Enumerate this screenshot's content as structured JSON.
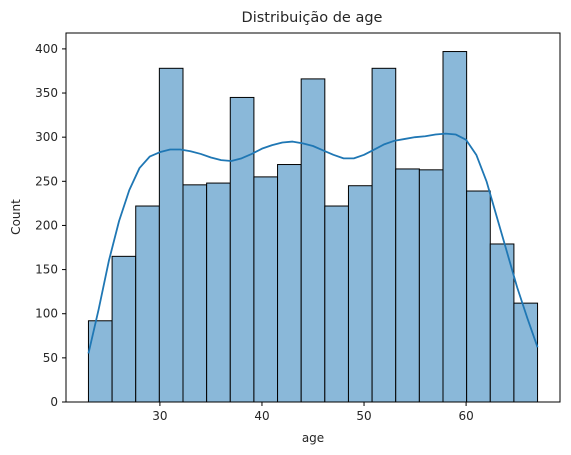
{
  "chart_data": {
    "type": "bar",
    "subtype": "histogram-with-kde",
    "title": "Distribuição de age",
    "xlabel": "age",
    "ylabel": "Count",
    "xlim": [
      20.8,
      69.2
    ],
    "ylim": [
      0,
      418
    ],
    "xticks": [
      30,
      40,
      50,
      60
    ],
    "yticks": [
      0,
      50,
      100,
      150,
      200,
      250,
      300,
      350,
      400
    ],
    "bin_start": 23,
    "bin_width": 2.3158,
    "values": [
      92,
      165,
      222,
      378,
      246,
      248,
      345,
      255,
      269,
      366,
      222,
      245,
      378,
      264,
      263,
      397,
      239,
      179,
      112
    ],
    "kde": {
      "x": [
        23,
        24,
        25,
        26,
        27,
        28,
        29,
        30,
        31,
        32,
        33,
        34,
        35,
        36,
        37,
        38,
        39,
        40,
        41,
        42,
        43,
        44,
        45,
        46,
        47,
        48,
        49,
        50,
        51,
        52,
        53,
        54,
        55,
        56,
        57,
        58,
        59,
        60,
        61,
        62,
        63,
        64,
        65,
        66,
        67
      ],
      "y": [
        55,
        105,
        160,
        205,
        240,
        265,
        278,
        283,
        286,
        286,
        284,
        281,
        277,
        274,
        273,
        276,
        281,
        287,
        291,
        294,
        295,
        293,
        290,
        285,
        280,
        276,
        276,
        280,
        286,
        292,
        296,
        298,
        300,
        301,
        303,
        304,
        303,
        297,
        280,
        250,
        210,
        170,
        130,
        95,
        62
      ]
    },
    "colors": {
      "bar_fill": "#8ab8d9",
      "bar_edge": "#000000",
      "kde_line": "#1f77b4"
    },
    "grid": false,
    "legend": "none"
  }
}
